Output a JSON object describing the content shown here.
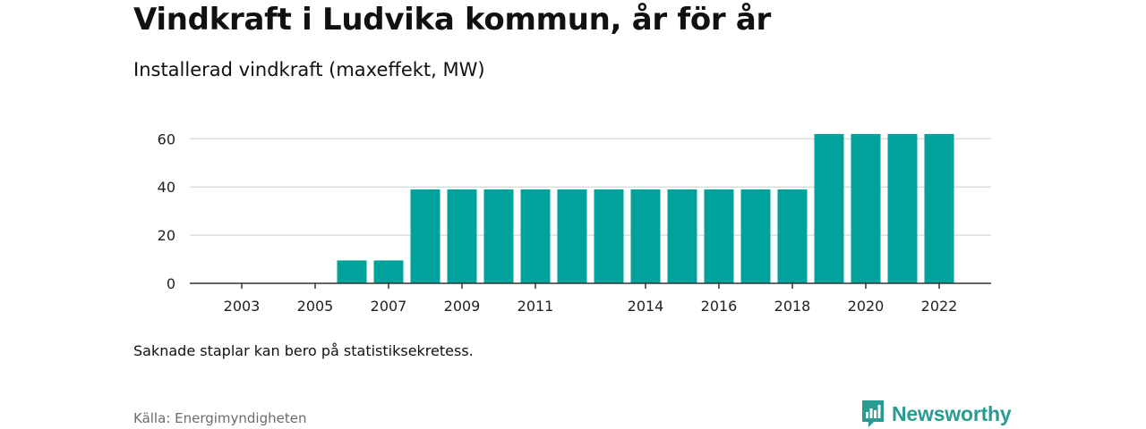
{
  "header": {
    "title": "Vindkraft i Ludvika kommun, år för år",
    "subtitle": "Installerad vindkraft (maxeffekt, MW)"
  },
  "footer": {
    "note": "Saknade staplar kan bero på statistiksekretess.",
    "source": "Källa: Energimyndigheten",
    "brand": "Newsworthy"
  },
  "colors": {
    "bar": "#00a39b",
    "grid": "#dddddd",
    "axis": "#333333",
    "brand": "#2b9a91"
  },
  "chart_data": {
    "type": "bar",
    "title": "Vindkraft i Ludvika kommun, år för år",
    "subtitle": "Installerad vindkraft (maxeffekt, MW)",
    "xlabel": "",
    "ylabel": "",
    "categories": [
      "2002",
      "2003",
      "2004",
      "2005",
      "2006",
      "2007",
      "2008",
      "2009",
      "2010",
      "2011",
      "2012",
      "2013",
      "2014",
      "2015",
      "2016",
      "2017",
      "2018",
      "2019",
      "2020",
      "2021",
      "2022"
    ],
    "values": [
      0,
      0,
      0,
      0,
      9.5,
      9.5,
      39,
      39,
      39,
      39,
      39,
      39,
      39,
      39,
      39,
      39,
      39,
      62,
      62,
      62,
      62
    ],
    "x_tick_labels": [
      "2003",
      "2005",
      "2007",
      "2009",
      "2011",
      "2014",
      "2016",
      "2018",
      "2020",
      "2022"
    ],
    "y_ticks": [
      0,
      20,
      40,
      60
    ],
    "ylim": [
      0,
      70
    ],
    "grid": true,
    "legend": "none"
  }
}
